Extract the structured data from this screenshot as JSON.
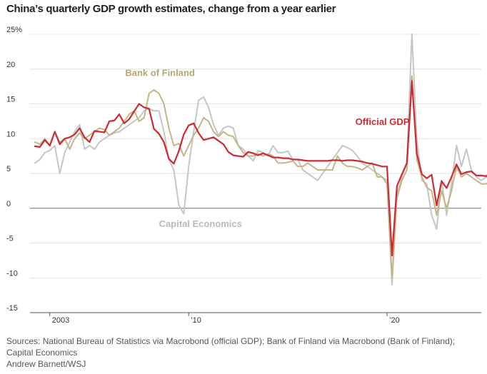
{
  "chart_data": {
    "type": "line",
    "title": "China’s quarterly GDP growth estimates, change from a year earlier",
    "xlabel": "",
    "ylabel": "",
    "ylim": [
      -15,
      25
    ],
    "yticks": [
      {
        "value": 25,
        "label": "25%"
      },
      {
        "value": 20,
        "label": "20"
      },
      {
        "value": 15,
        "label": "15"
      },
      {
        "value": 10,
        "label": "10"
      },
      {
        "value": 5,
        "label": "5"
      },
      {
        "value": 0,
        "label": "0"
      },
      {
        "value": -5,
        "label": "-5"
      },
      {
        "value": -10,
        "label": "-10"
      },
      {
        "value": -15,
        "label": "-15"
      }
    ],
    "xlim": [
      2002.0,
      2024.75
    ],
    "xticks": [
      {
        "value": 2003.0,
        "label": "2003"
      },
      {
        "value": 2010.0,
        "label": "’10"
      },
      {
        "value": 2020.0,
        "label": "’20"
      }
    ],
    "x_start": 2002.25,
    "x_step": 0.25,
    "grid": true,
    "series": [
      {
        "name": "Capital Economics",
        "color": "#c6c6c6",
        "values": [
          6.5,
          7.0,
          8.0,
          8.3,
          9.0,
          5.0,
          8.0,
          9.5,
          11.0,
          12.0,
          8.5,
          9.0,
          8.5,
          9.5,
          10.0,
          10.5,
          10.8,
          11.0,
          11.5,
          12.0,
          12.5,
          13.0,
          14.0,
          14.3,
          14.0,
          14.0,
          11.0,
          7.0,
          5.5,
          0.5,
          -0.8,
          6.0,
          11.0,
          15.5,
          16.0,
          14.5,
          12.0,
          10.5,
          11.5,
          11.8,
          11.5,
          9.0,
          8.5,
          7.5,
          6.8,
          8.3,
          8.0,
          7.5,
          9.0,
          8.0,
          8.0,
          8.2,
          7.0,
          7.0,
          5.5,
          5.0,
          4.5,
          4.0,
          5.0,
          6.0,
          7.0,
          8.0,
          9.0,
          8.7,
          8.3,
          7.5,
          6.5,
          6.0,
          5.5,
          5.0,
          4.5,
          4.0,
          -11.0,
          2.0,
          4.5,
          6.5,
          25.0,
          10.0,
          4.0,
          3.5,
          -1.0,
          -3.0,
          4.0,
          -1.0,
          3.5,
          9.0,
          6.0,
          8.5,
          5.5,
          4.5,
          4.0,
          4.5,
          4.0
        ]
      },
      {
        "name": "Bank of Finland",
        "color": "#c3b585",
        "values": [
          9.5,
          9.2,
          10.0,
          9.0,
          11.0,
          9.5,
          10.0,
          8.5,
          10.0,
          10.8,
          10.0,
          10.5,
          11.0,
          11.5,
          11.3,
          10.5,
          11.0,
          11.5,
          12.5,
          13.5,
          14.0,
          12.5,
          13.0,
          16.5,
          17.0,
          16.5,
          15.0,
          11.5,
          9.0,
          9.3,
          7.5,
          9.0,
          10.5,
          11.5,
          13.0,
          12.5,
          11.0,
          10.3,
          11.0,
          10.5,
          10.3,
          9.0,
          8.0,
          7.5,
          7.5,
          7.8,
          7.5,
          7.8,
          7.5,
          6.5,
          6.5,
          6.6,
          6.8,
          6.0,
          6.0,
          6.5,
          6.0,
          5.5,
          5.5,
          5.5,
          5.5,
          7.5,
          6.5,
          6.0,
          6.0,
          5.8,
          5.5,
          6.0,
          6.5,
          4.5,
          4.5,
          3.5,
          -10.0,
          1.5,
          4.0,
          5.5,
          19.0,
          7.0,
          4.5,
          3.0,
          2.5,
          -1.0,
          2.5,
          0.0,
          2.5,
          6.0,
          4.5,
          5.0,
          4.5,
          4.0,
          3.5,
          3.5,
          4.0
        ]
      },
      {
        "name": "Official GDP",
        "color": "#cc2b33",
        "values": [
          8.9,
          8.8,
          9.8,
          9.0,
          11.0,
          9.2,
          10.0,
          10.2,
          10.6,
          11.5,
          10.2,
          9.5,
          11.1,
          11.0,
          10.9,
          12.5,
          12.6,
          13.5,
          12.2,
          12.8,
          13.9,
          15.0,
          14.5,
          14.3,
          11.4,
          10.7,
          9.5,
          7.1,
          6.4,
          8.2,
          10.6,
          11.9,
          12.2,
          10.8,
          9.8,
          10.0,
          10.2,
          9.7,
          9.2,
          8.1,
          7.6,
          7.5,
          7.4,
          8.1,
          7.9,
          7.6,
          7.9,
          7.6,
          7.3,
          7.3,
          7.2,
          7.2,
          7.0,
          7.0,
          6.9,
          6.8,
          6.8,
          6.8,
          6.8,
          6.8,
          6.9,
          6.9,
          6.8,
          6.9,
          6.9,
          6.8,
          6.7,
          6.5,
          6.4,
          6.2,
          6.0,
          6.0,
          -6.8,
          3.2,
          4.9,
          6.5,
          18.3,
          7.9,
          4.9,
          4.3,
          4.8,
          0.4,
          3.9,
          2.9,
          4.5,
          6.3,
          4.9,
          5.2,
          5.3,
          4.7,
          4.7,
          4.6,
          5.4
        ]
      }
    ],
    "annotations": [
      {
        "text": "Bank of Finland",
        "x": 2006.8,
        "y": 19.0,
        "color": "#b8a673"
      },
      {
        "text": "Official GDP",
        "x": 2018.4,
        "y": 12.0,
        "color": "#cc2b33"
      },
      {
        "text": "Capital Economics",
        "x": 2008.5,
        "y": -2.7,
        "color": "#b9b9b9"
      }
    ]
  },
  "footer": {
    "sources_line1": "Sources: National Bureau of Statistics via Macrobond (official GDP); Bank of Finland via Macrobond (Bank of Finland);",
    "sources_line2": "Capital Economics",
    "credit": "Andrew Barnett/WSJ"
  }
}
